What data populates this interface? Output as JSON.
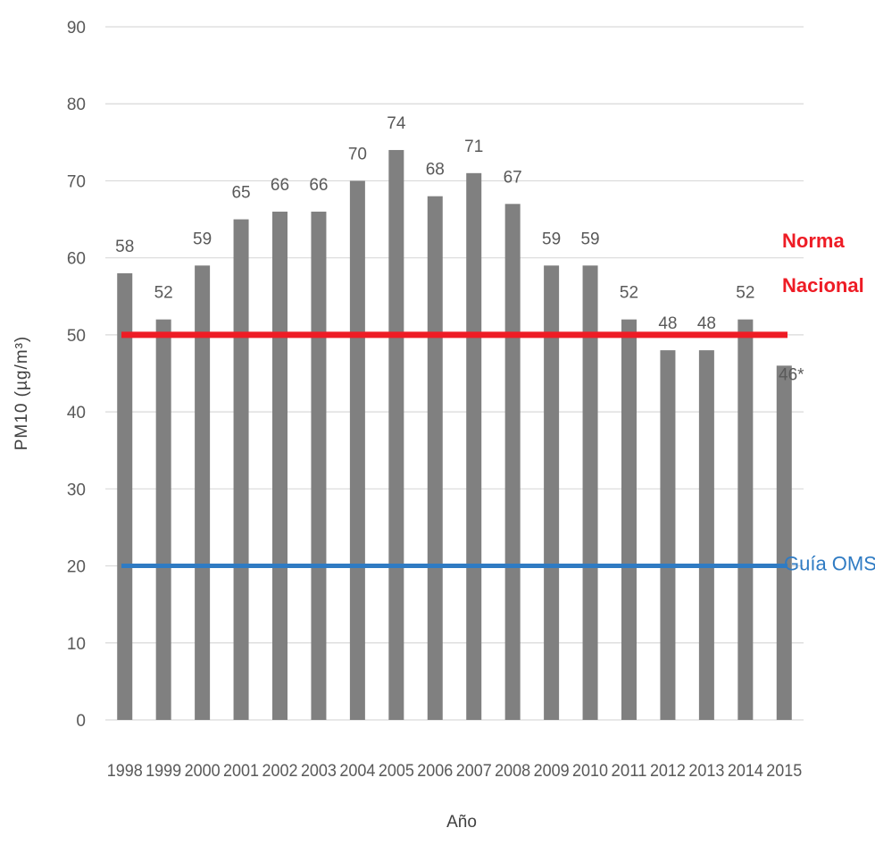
{
  "chart_data": {
    "type": "bar",
    "title": "",
    "xlabel": "Año",
    "ylabel": "PM10 (µg/m³)",
    "ylim": [
      0,
      90
    ],
    "yticks": [
      0,
      10,
      20,
      30,
      40,
      50,
      60,
      70,
      80,
      90
    ],
    "grid": true,
    "categories": [
      "1998",
      "1999",
      "2000",
      "2001",
      "2002",
      "2003",
      "2004",
      "2005",
      "2006",
      "2007",
      "2008",
      "2009",
      "2010",
      "2011",
      "2012",
      "2013",
      "2014",
      "2015"
    ],
    "values": [
      58,
      52,
      59,
      65,
      66,
      66,
      70,
      74,
      68,
      71,
      67,
      59,
      59,
      52,
      48,
      48,
      52,
      46
    ],
    "data_labels": [
      "58",
      "52",
      "59",
      "65",
      "66",
      "66",
      "70",
      "74",
      "68",
      "71",
      "67",
      "59",
      "59",
      "52",
      "48",
      "48",
      "52",
      "46*"
    ],
    "bar_color": "#808080",
    "reference_lines": [
      {
        "label_lines": [
          "Norma",
          "Nacional"
        ],
        "value": 50,
        "color": "#ee1c25"
      },
      {
        "label_lines": [
          "Guía OMS"
        ],
        "value": 20,
        "color": "#2f7bc3"
      }
    ]
  }
}
